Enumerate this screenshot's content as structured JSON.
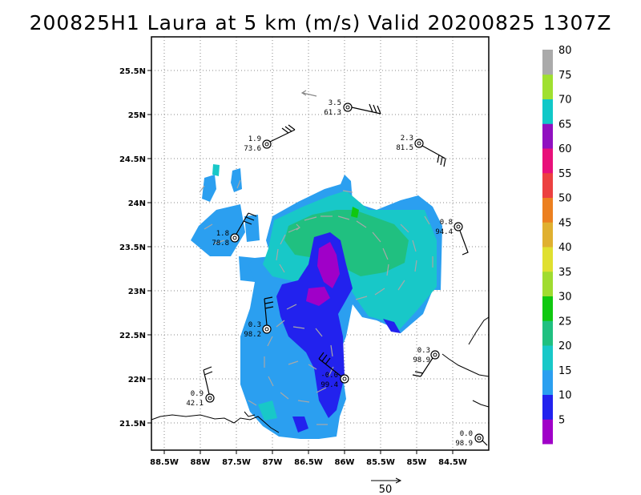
{
  "title": "200825H1 Laura at 5 km (m/s) Valid 20200825 1307Z",
  "map": {
    "lon_ticks": [
      "88.5W",
      "88W",
      "87.5W",
      "87W",
      "86.5W",
      "86W",
      "85.5W",
      "85W",
      "84.5W"
    ],
    "lat_ticks": [
      "25.5N",
      "25N",
      "24.5N",
      "24N",
      "23.5N",
      "23N",
      "22.5N",
      "22N",
      "21.5N"
    ]
  },
  "colorbar": {
    "labels": [
      "5",
      "10",
      "15",
      "20",
      "25",
      "30",
      "35",
      "40",
      "45",
      "50",
      "55",
      "60",
      "65",
      "70",
      "75",
      "80"
    ],
    "colors": [
      "#a000c8",
      "#2222ee",
      "#2b9ff0",
      "#18c8c8",
      "#20c080",
      "#10c810",
      "#a0dc30",
      "#e0e030",
      "#e0b030",
      "#ec8020",
      "#ec4040",
      "#e8107a",
      "#9010c0",
      "#10c8c8",
      "#a0e030",
      "#aaaaaa"
    ]
  },
  "stations": [
    {
      "top": "3.5",
      "bottom": "61.3"
    },
    {
      "top": "1.9",
      "bottom": "73.6"
    },
    {
      "top": "2.3",
      "bottom": "81.5"
    },
    {
      "top": "0.8",
      "bottom": "94.4"
    },
    {
      "top": "1.8",
      "bottom": "78.8"
    },
    {
      "top": "0.3",
      "bottom": "98.2"
    },
    {
      "top": "0.3",
      "bottom": "98.9"
    },
    {
      "top": "-0.0",
      "bottom": "99.4"
    },
    {
      "top": "0.9",
      "bottom": "42.1"
    },
    {
      "top": "0.0",
      "bottom": "98.9"
    }
  ],
  "reference_vector": {
    "label": "50"
  }
}
